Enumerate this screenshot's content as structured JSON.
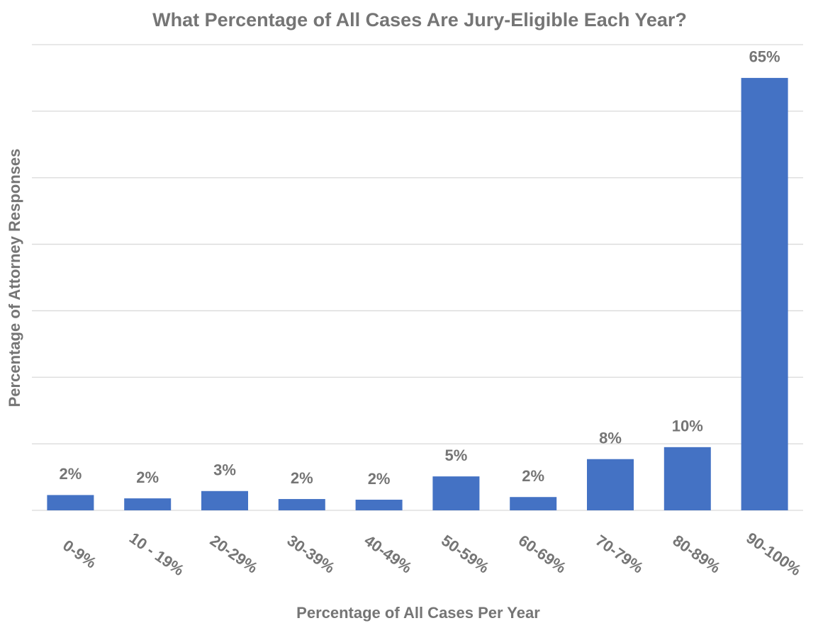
{
  "chart_data": {
    "type": "bar",
    "title": "What Percentage of All Cases Are Jury-Eligible Each Year?",
    "x_label": "Percentage of All Cases Per Year",
    "y_label": "Percentage of Attorney Responses",
    "categories": [
      "0-9%",
      "10 - 19%",
      "20-29%",
      "30-39%",
      "40-49%",
      "50-59%",
      "60-69%",
      "70-79%",
      "80-89%",
      "90-100%"
    ],
    "values": [
      2.3,
      1.8,
      2.9,
      1.7,
      1.6,
      5.1,
      2.0,
      7.7,
      9.5,
      65
    ],
    "value_labels": [
      "2%",
      "2%",
      "3%",
      "2%",
      "2%",
      "5%",
      "2%",
      "8%",
      "10%",
      "65%"
    ],
    "color": "#4472c4",
    "ylim": [
      0,
      70
    ],
    "yticks": [
      0,
      10,
      20,
      30,
      40,
      50,
      60,
      70
    ],
    "grid": true
  }
}
